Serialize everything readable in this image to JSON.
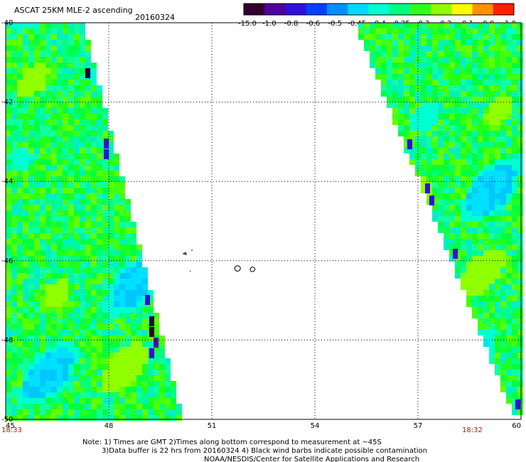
{
  "header": {
    "title": "ASCAT 25KM MLE-2 ascending",
    "date": "20160324"
  },
  "colorbar": {
    "ticks": [
      "-15.0",
      "-1.0",
      "-0.8",
      "-0.6",
      "-0.5",
      "-0.45",
      "-0.4",
      "-0.35",
      "-0.3",
      "-0.2",
      "-0.1",
      "0.0",
      "1.0"
    ],
    "colors": [
      "#300030",
      "#5000a0",
      "#3010d8",
      "#0040ff",
      "#0090ff",
      "#00d8ff",
      "#00ffd0",
      "#00ff80",
      "#30ff20",
      "#90ff00",
      "#ffff00",
      "#ff9000",
      "#ff2000"
    ]
  },
  "map": {
    "x_ticks": [
      "45",
      "48",
      "51",
      "54",
      "57",
      "60"
    ],
    "y_ticks": [
      "-40",
      "-42",
      "-44",
      "-46",
      "-48",
      "-50"
    ],
    "x_range": [
      45,
      60
    ],
    "y_range": [
      -40,
      -50
    ],
    "grid": true,
    "time_left": "18:33",
    "time_right": "18:32"
  },
  "notes": {
    "line1": "Note: 1) Times are GMT 2)Times along bottom correspond to measurement at ~45S",
    "line2": "3)Data buffer is 22 hrs from 20160324 4) Black wind barbs indicate possible contamination",
    "line3": "NOAA/NESDIS/Center for Satellite Applications and Research"
  }
}
